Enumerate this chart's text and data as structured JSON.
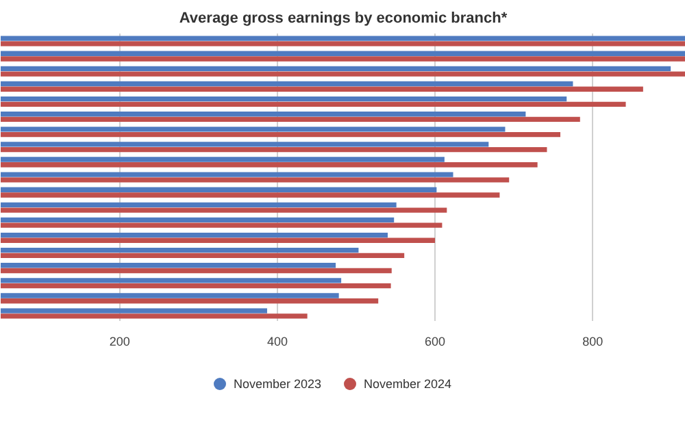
{
  "chart_data": {
    "type": "bar",
    "orientation": "horizontal",
    "title": "Average gross earnings by economic branch*",
    "categories": [
      null,
      null,
      null,
      null,
      null,
      null,
      null,
      null,
      null,
      null,
      null,
      null,
      null,
      null,
      null,
      null,
      null,
      null,
      null
    ],
    "series": [
      {
        "name": "November 2023",
        "color": "#4f7bc0",
        "values": [
          918,
          918,
          899,
          775,
          767,
          715,
          689,
          668,
          612,
          623,
          602,
          551,
          548,
          540,
          503,
          474,
          481,
          478,
          387
        ]
      },
      {
        "name": "November 2024",
        "color": "#c0504d",
        "values": [
          918,
          918,
          918,
          864,
          842,
          784,
          759,
          742,
          730,
          694,
          682,
          615,
          609,
          600,
          561,
          545,
          544,
          528,
          438
        ]
      }
    ],
    "xlim": [
      49,
      918
    ],
    "xticks": [
      200,
      400,
      600,
      800
    ],
    "grid": "x",
    "legend": "bottom",
    "tick_labels": "x"
  }
}
